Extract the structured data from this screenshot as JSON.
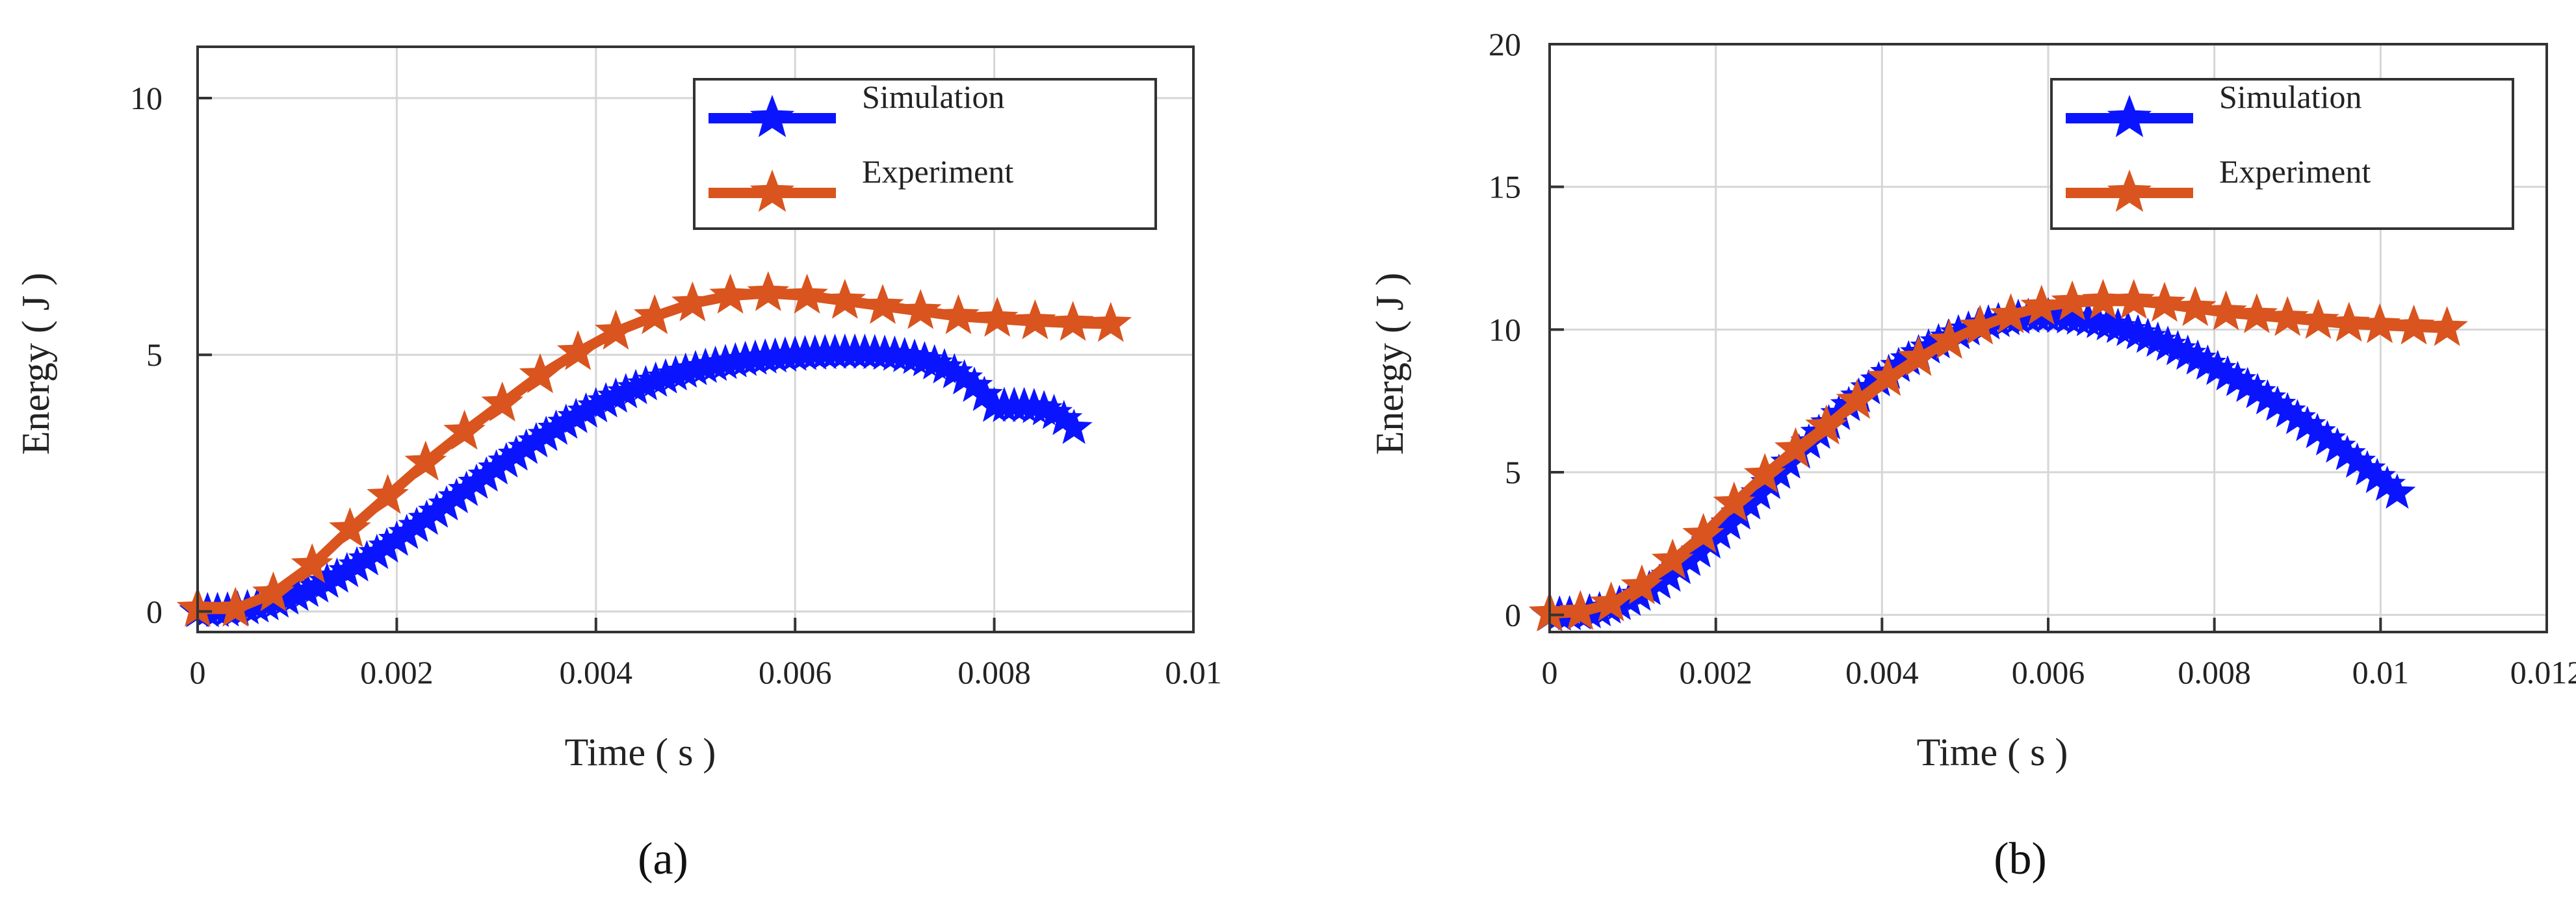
{
  "figure": {
    "panel_labels": [
      "(a)",
      "(b)"
    ],
    "colors": {
      "simulation": "#0a14ff",
      "experiment": "#d9541e",
      "grid": "#d6d6d6",
      "axis": "#333333"
    }
  },
  "chart_data": [
    {
      "type": "line",
      "panel": "(a)",
      "xlabel": "Time ( s )",
      "ylabel": "Energy ( J )",
      "xlim": [
        0,
        0.01
      ],
      "ylim": [
        -0.4,
        11
      ],
      "xticks": [
        0,
        0.002,
        0.004,
        0.006,
        0.008,
        0.01
      ],
      "xtick_labels": [
        "0",
        "0.002",
        "0.004",
        "0.006",
        "0.008",
        "0.01"
      ],
      "yticks": [
        0,
        5,
        10
      ],
      "ytick_labels": [
        "0",
        "5",
        "10"
      ],
      "grid": true,
      "legend": "top-right",
      "series": [
        {
          "name": "Simulation",
          "x": [
            0,
            0.0001,
            0.0002,
            0.0003,
            0.0004,
            0.0005,
            0.0006,
            0.0007,
            0.0008,
            0.0009,
            0.001,
            0.0011,
            0.0012,
            0.0013,
            0.0014,
            0.0015,
            0.0016,
            0.0017,
            0.0018,
            0.0019,
            0.002,
            0.0021,
            0.0022,
            0.0023,
            0.0024,
            0.0025,
            0.0026,
            0.0027,
            0.0028,
            0.0029,
            0.003,
            0.0031,
            0.0032,
            0.0033,
            0.0034,
            0.0035,
            0.0036,
            0.0037,
            0.0038,
            0.0039,
            0.004,
            0.0041,
            0.0042,
            0.0043,
            0.0044,
            0.0045,
            0.0046,
            0.0047,
            0.0048,
            0.0049,
            0.005,
            0.0051,
            0.0052,
            0.0053,
            0.0054,
            0.0055,
            0.0056,
            0.0057,
            0.0058,
            0.0059,
            0.006,
            0.0061,
            0.0062,
            0.0063,
            0.0064,
            0.0065,
            0.0066,
            0.0067,
            0.0068,
            0.0069,
            0.007,
            0.0071,
            0.0072,
            0.0073,
            0.0074,
            0.0075,
            0.0076,
            0.0077,
            0.0078,
            0.0079,
            0.008,
            0.0081,
            0.0082,
            0.0083,
            0.0084,
            0.0085,
            0.0086,
            0.0087,
            0.0088
          ],
          "y": [
            0,
            0.001,
            0.005,
            0.015,
            0.033,
            0.058,
            0.092,
            0.135,
            0.187,
            0.248,
            0.317,
            0.395,
            0.481,
            0.574,
            0.674,
            0.781,
            0.893,
            1.011,
            1.134,
            1.261,
            1.391,
            1.525,
            1.661,
            1.799,
            1.939,
            2.08,
            2.221,
            2.362,
            2.503,
            2.643,
            2.781,
            2.917,
            3.051,
            3.182,
            3.31,
            3.435,
            3.555,
            3.672,
            3.783,
            3.89,
            3.992,
            4.089,
            4.18,
            4.266,
            4.346,
            4.421,
            4.49,
            4.554,
            4.613,
            4.666,
            4.715,
            4.759,
            4.799,
            4.835,
            4.867,
            4.895,
            4.921,
            4.943,
            4.962,
            4.98,
            4.995,
            5.008,
            5.018,
            5.027,
            5.033,
            5.036,
            5.037,
            5.034,
            5.027,
            5.014,
            4.996,
            4.97,
            4.935,
            4.888,
            4.828,
            4.751,
            4.655,
            4.536,
            4.39,
            4.213,
            4.0,
            3.998,
            4.001,
            3.995,
            3.976,
            3.935,
            3.862,
            3.742,
            3.57
          ]
        },
        {
          "name": "Experiment",
          "x": [
            0,
            0.00038,
            0.00076,
            0.00115,
            0.00153,
            0.00191,
            0.00229,
            0.00268,
            0.00306,
            0.00344,
            0.00382,
            0.0042,
            0.00459,
            0.00497,
            0.00535,
            0.00573,
            0.00612,
            0.0065,
            0.00688,
            0.00726,
            0.00764,
            0.00803,
            0.00841,
            0.00879,
            0.00917
          ],
          "y": [
            0.05,
            0.05,
            0.35,
            0.9,
            1.6,
            2.25,
            2.9,
            3.5,
            4.05,
            4.6,
            5.05,
            5.45,
            5.75,
            6.0,
            6.15,
            6.2,
            6.15,
            6.05,
            5.95,
            5.85,
            5.75,
            5.7,
            5.65,
            5.62,
            5.6
          ]
        }
      ]
    },
    {
      "type": "line",
      "panel": "(b)",
      "xlabel": "Time ( s )",
      "ylabel": "Energy ( J )",
      "xlim": [
        0,
        0.012
      ],
      "ylim": [
        -0.6,
        20
      ],
      "xticks": [
        0,
        0.002,
        0.004,
        0.006,
        0.008,
        0.01,
        0.012
      ],
      "xtick_labels": [
        "0",
        "0.002",
        "0.004",
        "0.006",
        "0.008",
        "0.01",
        "0.012"
      ],
      "yticks": [
        0,
        5,
        10,
        15,
        20
      ],
      "ytick_labels": [
        "0",
        "5",
        "10",
        "15",
        "20"
      ],
      "grid": true,
      "legend": "top-right",
      "series": [
        {
          "name": "Simulation",
          "x": [
            0,
            0.00012,
            0.00024,
            0.00036,
            0.00048,
            0.0006,
            0.00072,
            0.00084,
            0.00096,
            0.00108,
            0.0012,
            0.00132,
            0.00144,
            0.00156,
            0.00168,
            0.0018,
            0.00192,
            0.00204,
            0.00216,
            0.00228,
            0.0024,
            0.00252,
            0.00264,
            0.00276,
            0.00288,
            0.003,
            0.00312,
            0.00324,
            0.00336,
            0.00348,
            0.0036,
            0.00372,
            0.00384,
            0.00396,
            0.00408,
            0.0042,
            0.00432,
            0.00444,
            0.00456,
            0.00468,
            0.0048,
            0.00492,
            0.00504,
            0.00516,
            0.00528,
            0.0054,
            0.00552,
            0.00564,
            0.00576,
            0.00588,
            0.006,
            0.00612,
            0.00624,
            0.00636,
            0.00648,
            0.0066,
            0.00672,
            0.00684,
            0.00696,
            0.00708,
            0.0072,
            0.00732,
            0.00744,
            0.00756,
            0.00768,
            0.0078,
            0.00792,
            0.00804,
            0.00816,
            0.00828,
            0.0084,
            0.00852,
            0.00864,
            0.00876,
            0.00888,
            0.009,
            0.00912,
            0.00924,
            0.00936,
            0.00948,
            0.0096,
            0.00972,
            0.00984,
            0.00996,
            0.01008,
            0.0102
          ],
          "y": [
            0,
            0.003,
            0.013,
            0.039,
            0.084,
            0.153,
            0.248,
            0.371,
            0.52,
            0.695,
            0.895,
            1.118,
            1.363,
            1.63,
            1.914,
            2.215,
            2.531,
            2.859,
            3.197,
            3.544,
            3.896,
            4.253,
            4.612,
            4.971,
            5.328,
            5.682,
            6.03,
            6.372,
            6.706,
            7.03,
            7.343,
            7.645,
            7.934,
            8.21,
            8.471,
            8.717,
            8.948,
            9.163,
            9.362,
            9.545,
            9.711,
            9.86,
            9.992,
            10.107,
            10.205,
            10.287,
            10.352,
            10.401,
            10.434,
            10.451,
            10.454,
            10.442,
            10.415,
            10.374,
            10.32,
            10.252,
            10.172,
            10.079,
            9.975,
            9.86,
            9.735,
            9.6,
            9.456,
            9.303,
            9.142,
            8.972,
            8.795,
            8.61,
            8.418,
            8.218,
            8.012,
            7.799,
            7.579,
            7.354,
            7.122,
            6.885,
            6.642,
            6.394,
            6.142,
            5.885,
            5.624,
            5.36,
            5.092,
            4.822,
            4.55,
            4.276
          ]
        },
        {
          "name": "Experiment",
          "x": [
            0,
            0.00037,
            0.00074,
            0.00111,
            0.00148,
            0.00185,
            0.00222,
            0.00259,
            0.00296,
            0.00333,
            0.0037,
            0.00407,
            0.00444,
            0.00481,
            0.00518,
            0.00555,
            0.00592,
            0.00629,
            0.00666,
            0.00703,
            0.0074,
            0.00777,
            0.00814,
            0.00851,
            0.00888,
            0.00925,
            0.00962,
            0.00999,
            0.0104,
            0.0108
          ],
          "y": [
            0.05,
            0.1,
            0.4,
            1.0,
            1.9,
            2.8,
            3.9,
            4.9,
            5.8,
            6.6,
            7.5,
            8.3,
            9.0,
            9.6,
            10.1,
            10.5,
            10.8,
            10.95,
            11.0,
            11.0,
            10.9,
            10.75,
            10.6,
            10.5,
            10.4,
            10.3,
            10.2,
            10.15,
            10.1,
            10.05
          ]
        }
      ]
    }
  ]
}
